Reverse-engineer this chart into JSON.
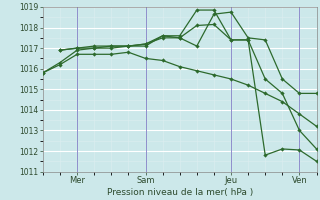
{
  "bg_color": "#cce8ea",
  "grid_major_color": "#ffffff",
  "grid_minor_color": "#ddeef0",
  "line_color": "#2d6a2d",
  "marker_color": "#2d6a2d",
  "xlabel": "Pression niveau de la mer( hPa )",
  "xtick_labels": [
    "Mer",
    "Sam",
    "Jeu",
    "Ven"
  ],
  "ylim": [
    1011,
    1019
  ],
  "yticks": [
    1011,
    1012,
    1013,
    1014,
    1015,
    1016,
    1017,
    1018,
    1019
  ],
  "xlim": [
    0,
    8
  ],
  "xtick_positions": [
    1.0,
    3.0,
    5.5,
    7.5
  ],
  "vline_positions": [
    1.0,
    3.0,
    5.5,
    7.5
  ],
  "vline_color": "#4444aa",
  "lines": [
    {
      "x": [
        0.0,
        0.5,
        1.0,
        1.5,
        2.0,
        2.5,
        3.0,
        3.5,
        4.0,
        4.5,
        5.0,
        5.5,
        6.0,
        6.5,
        7.0,
        7.5,
        8.0
      ],
      "y": [
        1015.8,
        1016.3,
        1016.9,
        1017.0,
        1017.0,
        1017.1,
        1017.1,
        1017.6,
        1017.5,
        1017.1,
        1018.65,
        1018.75,
        1017.5,
        1017.4,
        1015.5,
        1014.8,
        1014.8
      ]
    },
    {
      "x": [
        0.0,
        0.5,
        1.0,
        1.5,
        2.0,
        2.5,
        3.0,
        3.5,
        4.0,
        4.5,
        5.0,
        5.5,
        6.0,
        6.5,
        7.0,
        7.5,
        8.0
      ],
      "y": [
        1015.8,
        1016.2,
        1016.7,
        1016.7,
        1016.7,
        1016.8,
        1016.5,
        1016.4,
        1016.1,
        1015.9,
        1015.7,
        1015.5,
        1015.2,
        1014.8,
        1014.4,
        1013.8,
        1013.2
      ]
    },
    {
      "x": [
        0.5,
        1.0,
        1.5,
        2.0,
        2.5,
        3.0,
        3.5,
        4.0,
        4.5,
        5.0,
        5.5,
        6.0,
        6.5,
        7.0,
        7.5,
        8.0
      ],
      "y": [
        1016.9,
        1017.0,
        1017.0,
        1017.1,
        1017.1,
        1017.2,
        1017.5,
        1017.5,
        1018.1,
        1018.15,
        1017.4,
        1017.4,
        1015.5,
        1014.8,
        1013.0,
        1012.1
      ]
    },
    {
      "x": [
        0.5,
        1.0,
        1.5,
        2.0,
        2.5,
        3.0,
        3.5,
        4.0,
        4.5,
        5.0,
        5.5,
        6.0,
        6.5,
        7.0,
        7.5,
        8.0
      ],
      "y": [
        1016.9,
        1017.0,
        1017.1,
        1017.1,
        1017.1,
        1017.2,
        1017.6,
        1017.6,
        1018.85,
        1018.85,
        1017.4,
        1017.4,
        1011.8,
        1012.1,
        1012.05,
        1011.5
      ]
    }
  ]
}
